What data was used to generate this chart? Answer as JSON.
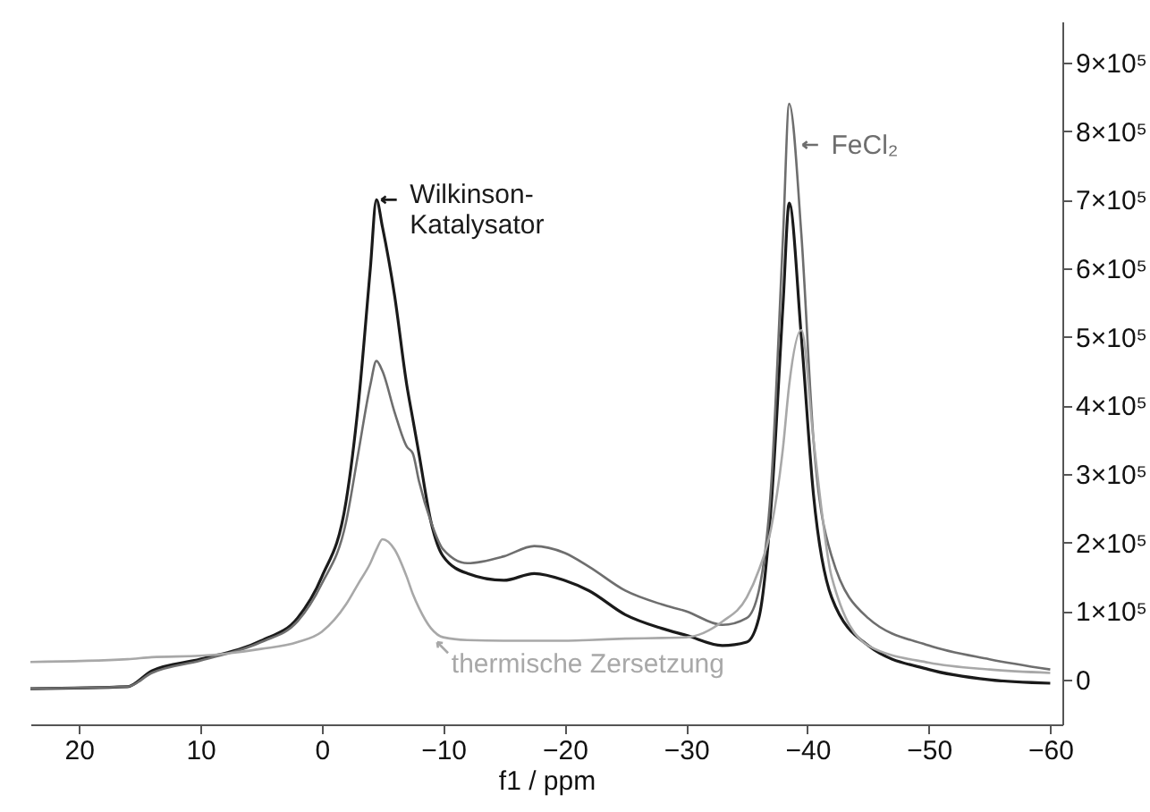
{
  "chart_data": {
    "type": "line",
    "xlabel": "f1 / ppm",
    "x": [
      24,
      16,
      14,
      10,
      5,
      2,
      0,
      -2,
      -3,
      -4,
      -4.5,
      -5,
      -6,
      -7,
      -7.5,
      -8,
      -9,
      -10,
      -12,
      -15,
      -17.5,
      -20,
      -22,
      -25,
      -28,
      -30,
      -33,
      -35,
      -36,
      -37,
      -38,
      -38.5,
      -39.5,
      -40.5,
      -42,
      -45,
      -50,
      -55,
      -60
    ],
    "series": [
      {
        "color": "#1a1a1a",
        "values": [
          -13000,
          -10000,
          13000,
          30000,
          57000,
          90000,
          150000,
          260000,
          400000,
          600000,
          700000,
          660000,
          560000,
          430000,
          380000,
          330000,
          230000,
          180000,
          155000,
          145000,
          155000,
          145000,
          130000,
          95000,
          75000,
          65000,
          50000,
          55000,
          90000,
          250000,
          550000,
          695000,
          500000,
          270000,
          120000,
          50000,
          15000,
          0,
          -5000
        ]
      },
      {
        "color": "#6e6e6e",
        "values": [
          -13000,
          -10000,
          10000,
          28000,
          55000,
          85000,
          140000,
          230000,
          330000,
          430000,
          465000,
          450000,
          390000,
          340000,
          330000,
          290000,
          230000,
          190000,
          170000,
          180000,
          195000,
          185000,
          165000,
          130000,
          110000,
          100000,
          80000,
          90000,
          130000,
          280000,
          650000,
          840000,
          650000,
          350000,
          180000,
          90000,
          50000,
          30000,
          15000
        ]
      },
      {
        "color": "#a8a8a8",
        "values": [
          26000,
          30000,
          33000,
          35000,
          45000,
          55000,
          70000,
          110000,
          140000,
          170000,
          190000,
          205000,
          190000,
          150000,
          125000,
          105000,
          75000,
          62000,
          58000,
          57000,
          57000,
          57000,
          58000,
          60000,
          61000,
          62000,
          85000,
          120000,
          160000,
          220000,
          340000,
          430000,
          510000,
          350000,
          150000,
          50000,
          25000,
          15000,
          10000
        ]
      }
    ],
    "xlim": [
      24,
      -61
    ],
    "xticks": [
      {
        "value": 20,
        "label": "20"
      },
      {
        "value": 10,
        "label": "10"
      },
      {
        "value": 0,
        "label": "0"
      },
      {
        "value": -10,
        "label": "−10"
      },
      {
        "value": -20,
        "label": "−20"
      },
      {
        "value": -30,
        "label": "−30"
      },
      {
        "value": -40,
        "label": "−40"
      },
      {
        "value": -50,
        "label": "−50"
      },
      {
        "value": -60,
        "label": "−60"
      }
    ],
    "ylim": [
      -65000,
      960000
    ],
    "yticks": [
      {
        "value": 0,
        "label": "0"
      },
      {
        "value": 100000,
        "label": "1×10⁵"
      },
      {
        "value": 200000,
        "label": "2×10⁵"
      },
      {
        "value": 300000,
        "label": "3×10⁵"
      },
      {
        "value": 400000,
        "label": "4×10⁵"
      },
      {
        "value": 500000,
        "label": "5×10⁵"
      },
      {
        "value": 600000,
        "label": "6×10⁵"
      },
      {
        "value": 700000,
        "label": "7×10⁵"
      },
      {
        "value": 800000,
        "label": "8×10⁵"
      },
      {
        "value": 900000,
        "label": "9×10⁵"
      }
    ],
    "annotations": [
      {
        "text": "Wilkinson-\nKatalysator",
        "x": -4.9,
        "y": 700000
      },
      {
        "text": "FeCl₂",
        "x": -39.6,
        "y": 780000
      },
      {
        "text": "thermische Zersetzung",
        "x": -9.5,
        "y": 55000
      }
    ],
    "grid": false,
    "marker": "none",
    "line_style": "solid"
  }
}
